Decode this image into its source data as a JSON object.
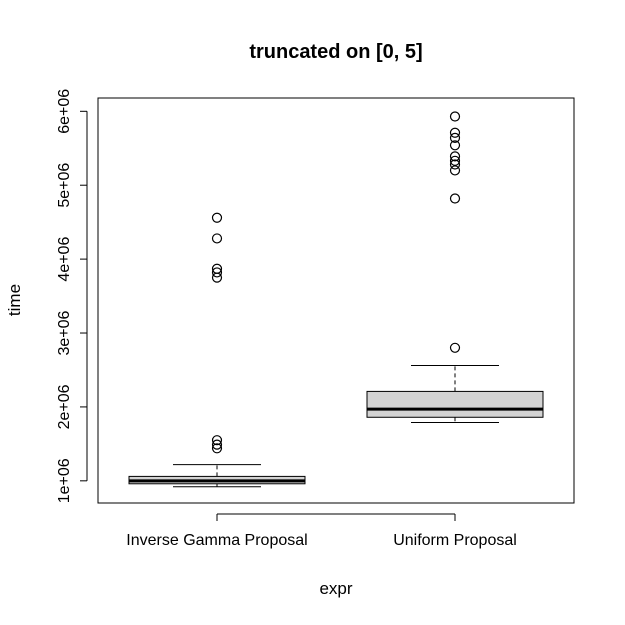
{
  "chart_data": {
    "type": "boxplot",
    "title": "truncated on [0, 5]",
    "xlabel": "expr",
    "ylabel": "time",
    "ylim": [
      700000,
      6180000
    ],
    "yticks": [
      1000000,
      2000000,
      3000000,
      4000000,
      5000000,
      6000000
    ],
    "ytick_labels": [
      "1e+06",
      "2e+06",
      "3e+06",
      "4e+06",
      "5e+06",
      "6e+06"
    ],
    "categories": [
      "Inverse Gamma Proposal",
      "Uniform Proposal"
    ],
    "box_fill": "#d3d3d3",
    "boxes": [
      {
        "whisker_low": 920000,
        "q1": 960000,
        "median": 1000000,
        "q3": 1060000,
        "whisker_high": 1220000,
        "outliers": [
          1440000,
          1490000,
          1550000,
          3750000,
          3820000,
          3870000,
          4280000,
          4560000
        ]
      },
      {
        "whisker_low": 1790000,
        "q1": 1860000,
        "median": 1970000,
        "q3": 2210000,
        "whisker_high": 2560000,
        "outliers": [
          2800000,
          4820000,
          5200000,
          5280000,
          5330000,
          5390000,
          5540000,
          5640000,
          5710000,
          5930000
        ]
      }
    ]
  }
}
